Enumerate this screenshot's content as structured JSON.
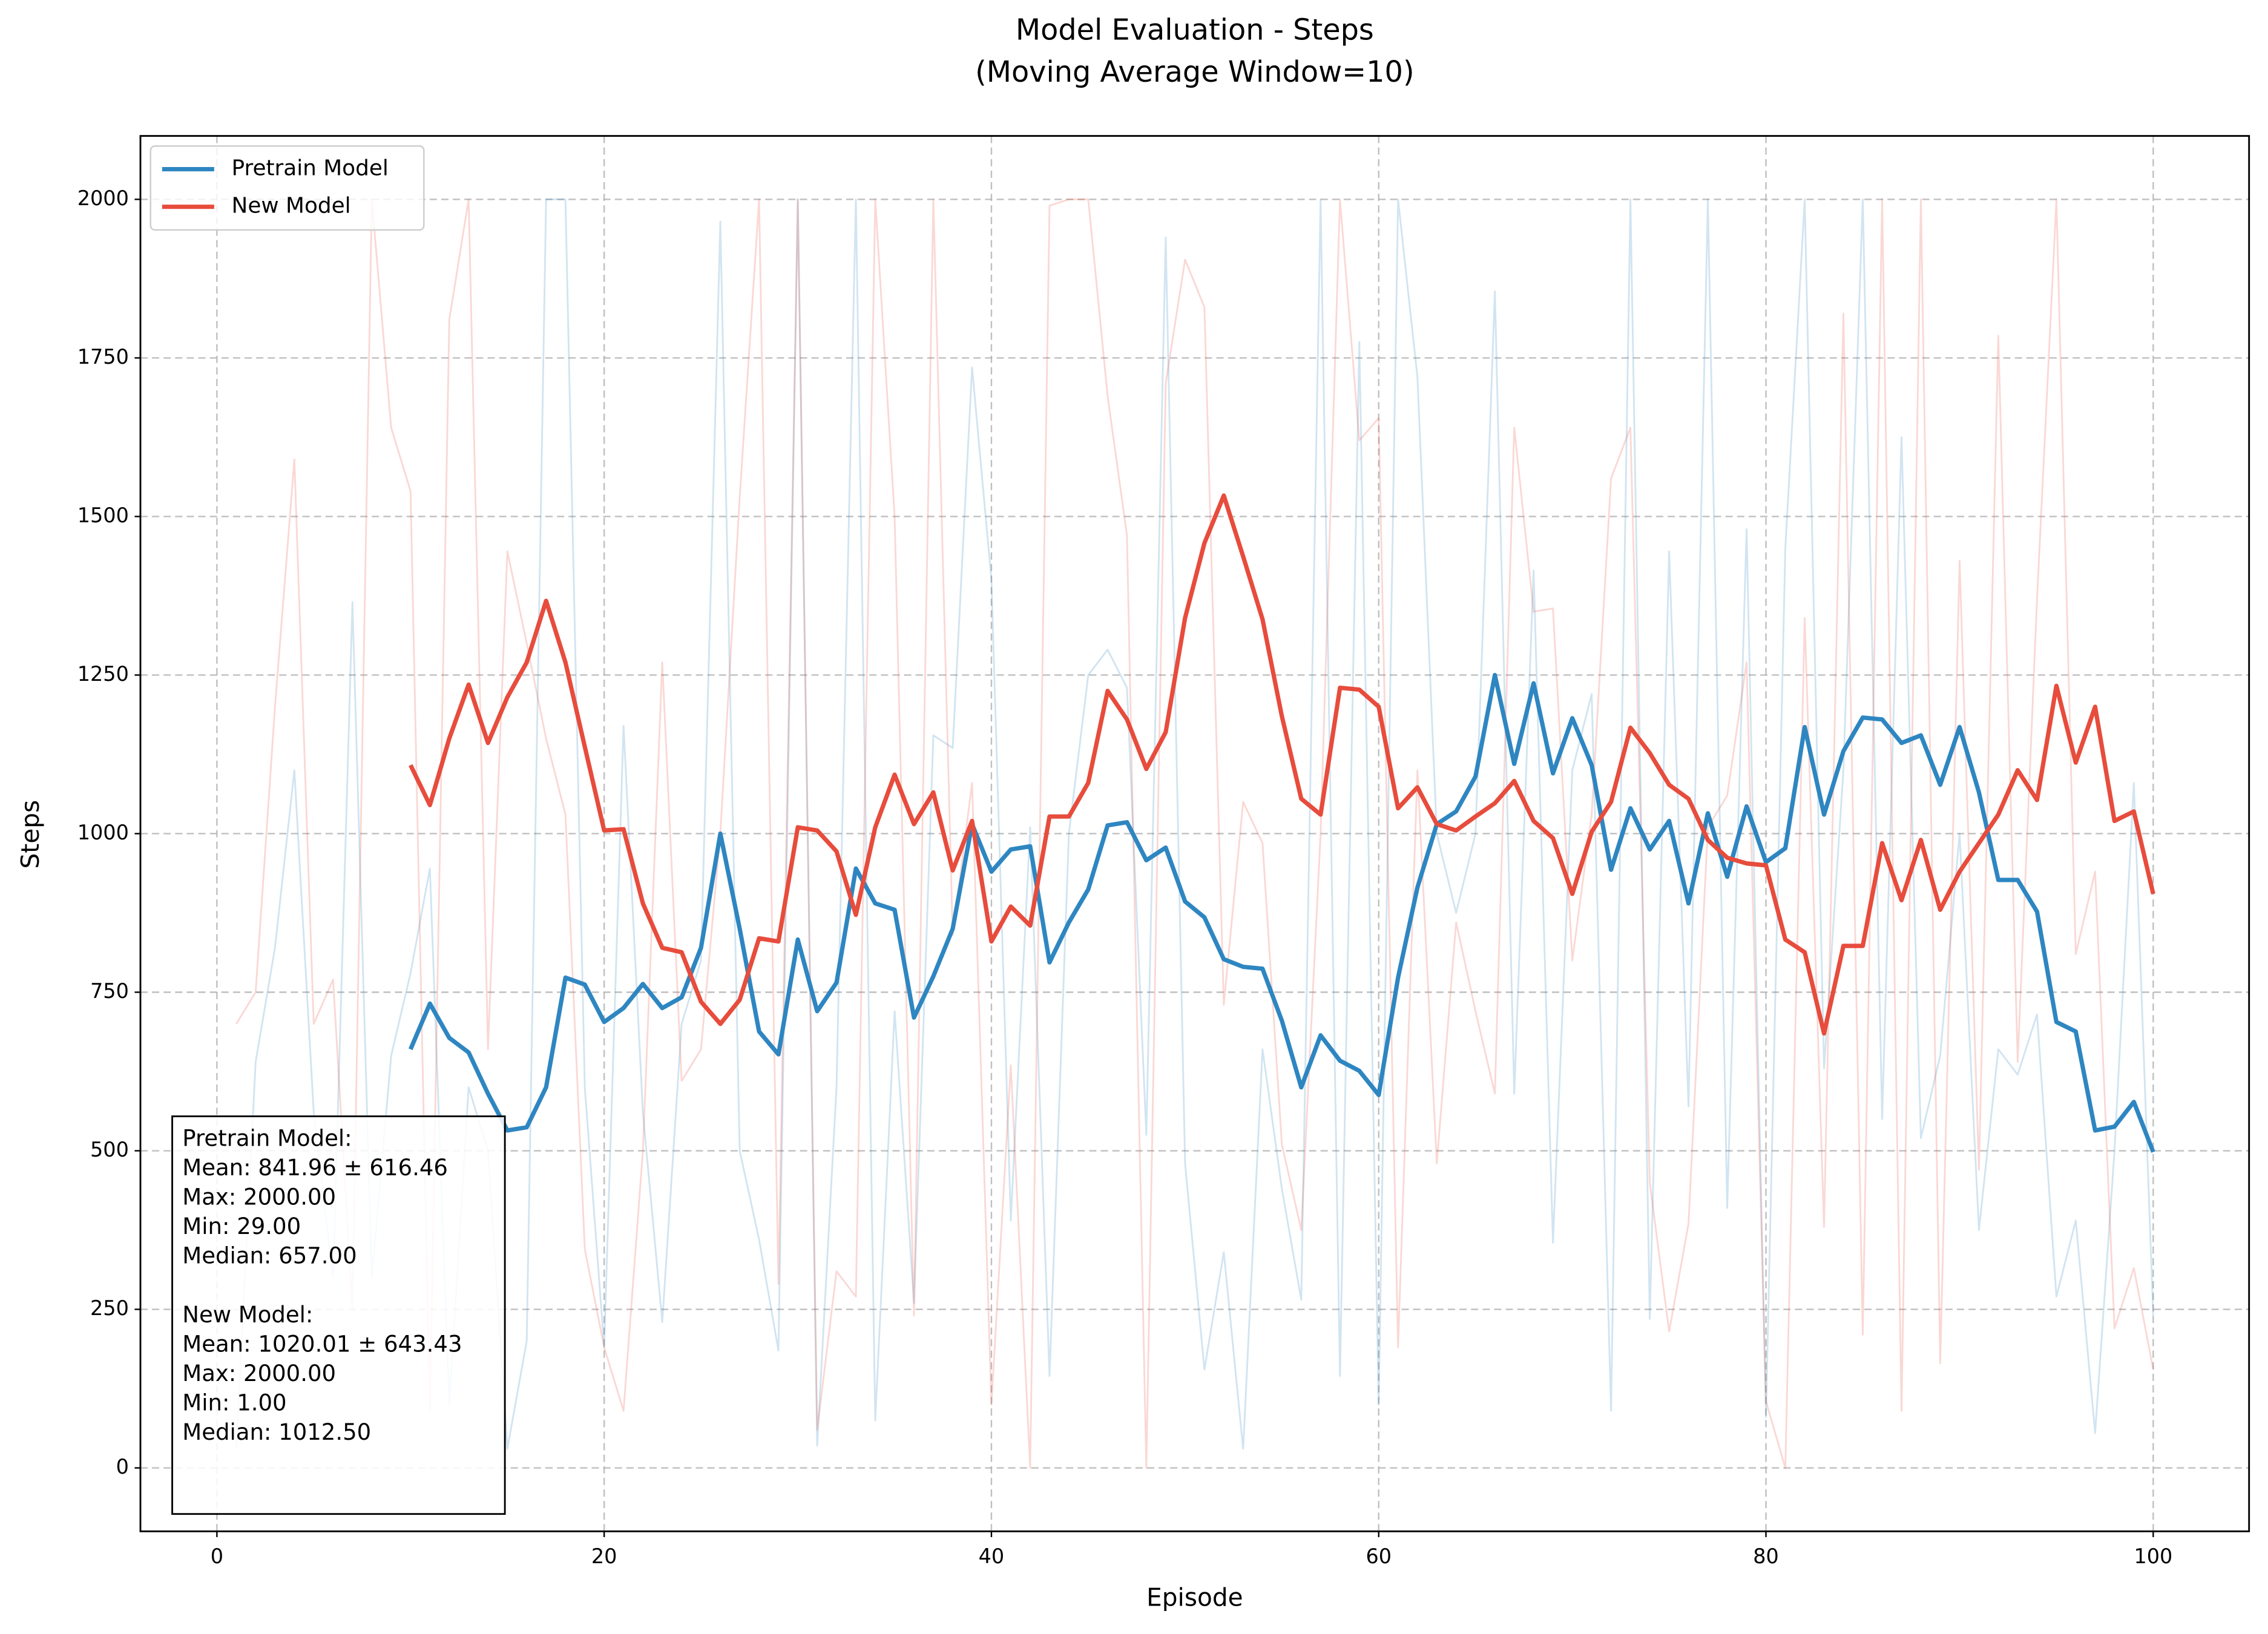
{
  "chart_data": {
    "type": "line",
    "title": "Model Evaluation - Steps",
    "subtitle": "(Moving Average Window=10)",
    "x_label": "Episode",
    "y_label": "Steps",
    "xlim": [
      -3.95,
      104.95
    ],
    "ylim": [
      -100,
      2100
    ],
    "xticks": [
      0,
      20,
      40,
      60,
      80,
      100
    ],
    "yticks": [
      0,
      250,
      500,
      750,
      1000,
      1250,
      1500,
      1750,
      2000
    ],
    "grid": true,
    "legend": "upper left",
    "series": [
      {
        "name": "Pretrain Model",
        "color": "#2e86c1",
        "x": [
          10,
          11,
          12,
          13,
          14,
          15,
          16,
          17,
          18,
          19,
          20,
          21,
          22,
          23,
          24,
          25,
          26,
          27,
          28,
          29,
          30,
          31,
          32,
          33,
          34,
          35,
          36,
          37,
          38,
          39,
          40,
          41,
          42,
          43,
          44,
          45,
          46,
          47,
          48,
          49,
          50,
          51,
          52,
          53,
          54,
          55,
          56,
          57,
          58,
          59,
          60,
          61,
          62,
          63,
          64,
          65,
          66,
          67,
          68,
          69,
          70,
          71,
          72,
          73,
          74,
          75,
          76,
          77,
          78,
          79,
          80,
          81,
          82,
          83,
          84,
          85,
          86,
          87,
          88,
          89,
          90,
          91,
          92,
          93,
          94,
          95,
          96,
          97,
          98,
          99,
          100
        ],
        "values": [
          660,
          732,
          678,
          655,
          590,
          532,
          537,
          600,
          773,
          762,
          703,
          725,
          763,
          725,
          742,
          820,
          1000,
          850,
          688,
          652,
          833,
          720,
          765,
          945,
          890,
          880,
          710,
          775,
          850,
          1015,
          940,
          975,
          980,
          797,
          860,
          912,
          1013,
          1018,
          958,
          978,
          893,
          868,
          802,
          790,
          787,
          705,
          600,
          682,
          642,
          626,
          588,
          773,
          915,
          1015,
          1035,
          1090,
          1250,
          1110,
          1237,
          1095,
          1182,
          1108,
          943,
          1040,
          975,
          1020,
          890,
          1032,
          932,
          1043,
          955,
          977,
          1168,
          1030,
          1130,
          1183,
          1180,
          1143,
          1155,
          1077,
          1168,
          1065,
          927,
          927,
          877,
          703,
          688,
          532,
          538,
          577,
          498
        ]
      },
      {
        "name": "New Model",
        "color": "#e74c3c",
        "x": [
          10,
          11,
          12,
          13,
          14,
          15,
          16,
          17,
          18,
          19,
          20,
          21,
          22,
          23,
          24,
          25,
          26,
          27,
          28,
          29,
          30,
          31,
          32,
          33,
          34,
          35,
          36,
          37,
          38,
          39,
          40,
          41,
          42,
          43,
          44,
          45,
          46,
          47,
          48,
          49,
          50,
          51,
          52,
          53,
          54,
          55,
          56,
          57,
          58,
          59,
          60,
          61,
          62,
          63,
          64,
          65,
          66,
          67,
          68,
          69,
          70,
          71,
          72,
          73,
          74,
          75,
          76,
          77,
          78,
          79,
          80,
          81,
          82,
          83,
          84,
          85,
          86,
          87,
          88,
          89,
          90,
          91,
          92,
          93,
          94,
          95,
          96,
          97,
          98,
          99,
          100
        ],
        "values": [
          1108,
          1045,
          1150,
          1235,
          1143,
          1215,
          1270,
          1367,
          1270,
          1137,
          1005,
          1007,
          890,
          820,
          813,
          735,
          700,
          738,
          835,
          830,
          1010,
          1005,
          972,
          872,
          1010,
          1093,
          1015,
          1065,
          942,
          1020,
          830,
          885,
          855,
          1027,
          1027,
          1080,
          1225,
          1180,
          1102,
          1160,
          1340,
          1458,
          1533,
          1437,
          1338,
          1185,
          1055,
          1030,
          1230,
          1227,
          1200,
          1040,
          1073,
          1015,
          1005,
          1027,
          1048,
          1083,
          1020,
          993,
          905,
          1003,
          1050,
          1167,
          1127,
          1077,
          1055,
          990,
          962,
          953,
          950,
          833,
          813,
          685,
          823,
          823,
          985,
          895,
          990,
          880,
          940,
          985,
          1030,
          1100,
          1053,
          1233,
          1112,
          1200,
          1020,
          1035,
          905
        ]
      }
    ],
    "raw_series": [
      {
        "color": "#2e86c1",
        "x": [
          1,
          2,
          3,
          4,
          5,
          6,
          7,
          8,
          9,
          10,
          11,
          12,
          13,
          14,
          15,
          16,
          17,
          18,
          19,
          20,
          21,
          22,
          23,
          24,
          25,
          26,
          27,
          28,
          29,
          30,
          31,
          32,
          33,
          34,
          35,
          36,
          37,
          38,
          39,
          40,
          41,
          42,
          43,
          44,
          45,
          46,
          47,
          48,
          49,
          50,
          51,
          52,
          53,
          54,
          55,
          56,
          57,
          58,
          59,
          60,
          61,
          62,
          63,
          64,
          65,
          66,
          67,
          68,
          69,
          70,
          71,
          72,
          73,
          74,
          75,
          76,
          77,
          78,
          79,
          80,
          81,
          82,
          83,
          84,
          85,
          86,
          87,
          88,
          89,
          90,
          91,
          92,
          93,
          94,
          95,
          96,
          97,
          98,
          99,
          100
        ],
        "values": [
          30,
          640,
          820,
          1100,
          560,
          300,
          1365,
          300,
          650,
          780,
          945,
          100,
          600,
          500,
          30,
          200,
          2000,
          2000,
          600,
          190,
          1170,
          560,
          230,
          700,
          800,
          1965,
          500,
          360,
          185,
          2000,
          35,
          600,
          2000,
          75,
          720,
          260,
          1155,
          1135,
          1735,
          1400,
          390,
          1010,
          145,
          1000,
          1250,
          1290,
          1230,
          525,
          1940,
          480,
          155,
          340,
          30,
          660,
          440,
          265,
          2000,
          145,
          1775,
          100,
          2000,
          1720,
          1000,
          875,
          1000,
          1855,
          590,
          1415,
          355,
          1100,
          1220,
          90,
          2000,
          235,
          1445,
          570,
          2000,
          410,
          1480,
          80,
          1450,
          2000,
          630,
          1100,
          2000,
          550,
          1625,
          520,
          650,
          1000,
          375,
          660,
          620,
          715,
          270,
          390,
          55,
          500,
          1080,
          240
        ]
      },
      {
        "color": "#e74c3c",
        "x": [
          1,
          2,
          3,
          4,
          5,
          6,
          7,
          8,
          9,
          10,
          11,
          12,
          13,
          14,
          15,
          16,
          17,
          18,
          19,
          20,
          21,
          22,
          23,
          24,
          25,
          26,
          27,
          28,
          29,
          30,
          31,
          32,
          33,
          34,
          35,
          36,
          37,
          38,
          39,
          40,
          41,
          42,
          43,
          44,
          45,
          46,
          47,
          48,
          49,
          50,
          51,
          52,
          53,
          54,
          55,
          56,
          57,
          58,
          59,
          60,
          61,
          62,
          63,
          64,
          65,
          66,
          67,
          68,
          69,
          70,
          71,
          72,
          73,
          74,
          75,
          76,
          77,
          78,
          79,
          80,
          81,
          82,
          83,
          84,
          85,
          86,
          87,
          88,
          89,
          90,
          91,
          92,
          93,
          94,
          95,
          96,
          97,
          98,
          99,
          100
        ],
        "values": [
          700,
          750,
          1200,
          1590,
          700,
          770,
          250,
          2000,
          1640,
          1540,
          90,
          1810,
          2000,
          660,
          1445,
          1300,
          1150,
          1030,
          345,
          190,
          90,
          500,
          1270,
          610,
          660,
          1000,
          1530,
          2000,
          290,
          2000,
          60,
          310,
          270,
          2000,
          1500,
          240,
          2000,
          840,
          1080,
          100,
          635,
          0,
          1990,
          2000,
          2000,
          1690,
          1470,
          0,
          1710,
          1905,
          1830,
          730,
          1050,
          985,
          510,
          375,
          1000,
          2000,
          1620,
          1655,
          190,
          1100,
          480,
          860,
          720,
          590,
          1640,
          1350,
          1355,
          800,
          1030,
          1560,
          1640,
          450,
          215,
          385,
          1010,
          1060,
          1270,
          105,
          0,
          1340,
          380,
          1820,
          210,
          2000,
          90,
          2000,
          165,
          1430,
          470,
          1785,
          640,
          1370,
          2000,
          810,
          940,
          220,
          315,
          155
        ]
      }
    ],
    "stats_text": [
      [
        "Pretrain Model:",
        "Mean: 841.96 ± 616.46",
        "Max: 2000.00",
        "Min: 29.00",
        "Median: 657.00"
      ],
      [
        "New Model:",
        "Mean: 1020.01 ± 643.43",
        "Max: 2000.00",
        "Min: 1.00",
        "Median: 1012.50"
      ]
    ]
  }
}
